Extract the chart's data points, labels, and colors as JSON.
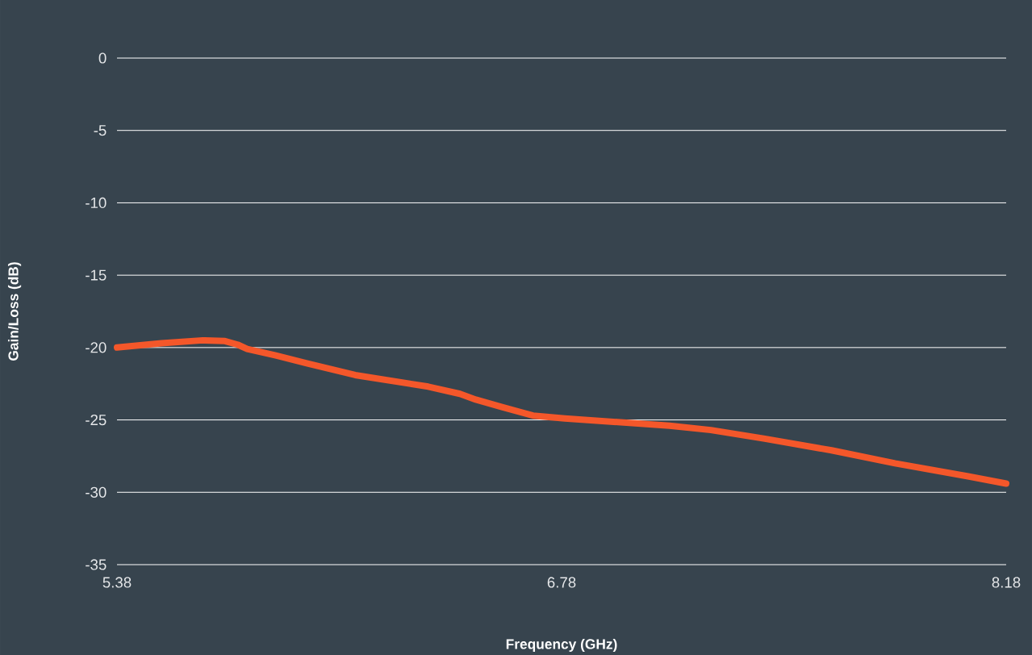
{
  "chart_data": {
    "type": "line",
    "xlabel": "Frequency (GHz)",
    "ylabel": "Gain/Loss (dB)",
    "x": [
      5.38,
      5.52,
      5.65,
      5.72,
      5.76,
      5.79,
      5.88,
      5.98,
      6.13,
      6.36,
      6.46,
      6.51,
      6.59,
      6.69,
      6.79,
      7.12,
      7.25,
      7.42,
      7.63,
      7.83,
      8.06,
      8.18
    ],
    "series": [
      {
        "color": "#f4572a",
        "values": [
          -20.0,
          -19.7,
          -19.5,
          -19.55,
          -19.8,
          -20.1,
          -20.55,
          -21.1,
          -21.9,
          -22.7,
          -23.2,
          -23.6,
          -24.1,
          -24.7,
          -24.9,
          -25.4,
          -25.7,
          -26.3,
          -27.1,
          -28.0,
          -28.9,
          -29.4
        ]
      }
    ],
    "xlim": [
      5.38,
      8.18
    ],
    "ylim": [
      -35,
      0
    ],
    "xticks": [
      5.38,
      6.78,
      8.18
    ],
    "yticks": [
      0,
      -5,
      -10,
      -15,
      -20,
      -25,
      -30,
      -35
    ],
    "grid": "y"
  }
}
